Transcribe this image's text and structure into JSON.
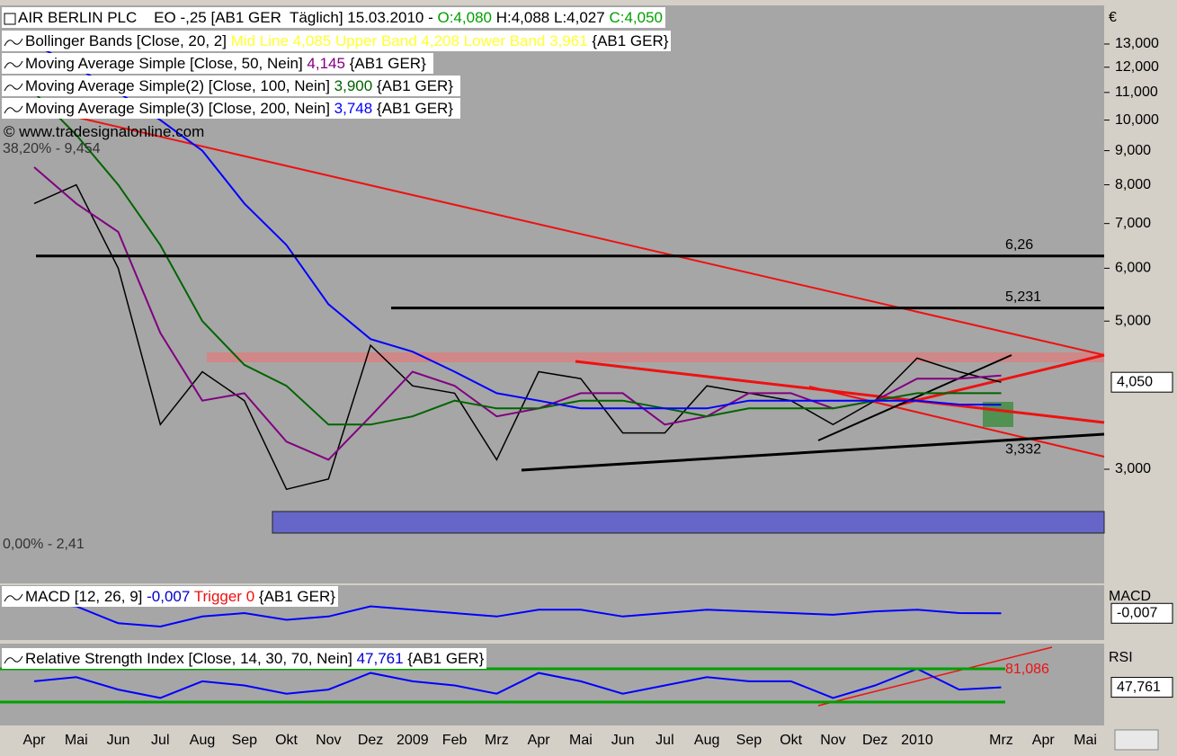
{
  "header": {
    "instrument": "AIR BERLIN PLC",
    "info": "EO -,25 [AB1 GER  Täglich] 15.03.2010 -",
    "open": "O:4,080",
    "high_low": "H:4,088 L:4,027",
    "close": "C:4,050",
    "watermark": "© www.tradesignalonline.com",
    "symbol": "{AB1 GER}"
  },
  "bollinger": {
    "label": "Bollinger Bands [Close, 20, 2]",
    "detail": "Mid Line 4,085 Upper Band 4,208 Lower Band 3,961"
  },
  "chart_data": [
    {
      "type": "line",
      "currency": "€",
      "log_scale": true,
      "categories": [
        "Apr",
        "Mai",
        "Jun",
        "Jul",
        "Aug",
        "Sep",
        "Okt",
        "Nov",
        "Dez",
        "2009",
        "Feb",
        "Mrz",
        "Apr",
        "Mai",
        "Jun",
        "Jul",
        "Aug",
        "Sep",
        "Okt",
        "Nov",
        "Dez",
        "2010",
        null,
        "Mrz",
        "Apr",
        "Mai"
      ],
      "ylim": [
        2.03,
        14.76
      ],
      "yticks": [
        {
          "value": 3,
          "label": "3,000"
        },
        {
          "value": 5,
          "label": "5,000"
        },
        {
          "value": 6,
          "label": "6,000"
        },
        {
          "value": 7,
          "label": "7,000"
        },
        {
          "value": 8,
          "label": "8,000"
        },
        {
          "value": 9,
          "label": "9,000"
        },
        {
          "value": 10,
          "label": "10,000"
        },
        {
          "value": 11,
          "label": "11,000"
        },
        {
          "value": 12,
          "label": "12,000"
        },
        {
          "value": 13,
          "label": "13,000"
        }
      ],
      "series": [
        {
          "color": "#000000",
          "values": [
            7.5,
            8.0,
            6.0,
            3.5,
            4.2,
            3.8,
            2.8,
            2.9,
            4.6,
            4.0,
            3.9,
            3.1,
            4.2,
            4.1,
            3.4,
            3.4,
            4.0,
            3.9,
            3.8,
            3.5,
            3.8,
            4.4,
            4.2,
            4.05,
            null,
            null
          ]
        },
        {
          "name": "Moving Average Simple [Close, 50, Nein]",
          "legend_value": "4,145",
          "color": "#800080",
          "values": [
            8.5,
            7.5,
            6.8,
            4.8,
            3.8,
            3.9,
            3.3,
            3.1,
            3.6,
            4.2,
            4.0,
            3.6,
            3.7,
            3.9,
            3.9,
            3.5,
            3.6,
            3.9,
            3.9,
            3.7,
            3.8,
            4.1,
            4.1,
            4.145,
            null,
            null
          ]
        },
        {
          "name": "Moving Average Simple(2) [Close, 100, Nein]",
          "legend_value": "3,900",
          "color": "#006400",
          "values": [
            11,
            9.5,
            8,
            6.5,
            5,
            4.3,
            4,
            3.5,
            3.5,
            3.6,
            3.8,
            3.7,
            3.7,
            3.8,
            3.8,
            3.7,
            3.6,
            3.7,
            3.7,
            3.7,
            3.8,
            3.9,
            3.9,
            3.9,
            null,
            null
          ]
        },
        {
          "name": "Moving Average Simple(3) [Close, 200, Nein]",
          "legend_value": "3,748",
          "color": "#0000ff",
          "values": [
            13,
            12,
            11,
            10,
            9,
            7.5,
            6.5,
            5.3,
            4.7,
            4.5,
            4.2,
            3.9,
            3.8,
            3.7,
            3.7,
            3.7,
            3.7,
            3.8,
            3.8,
            3.8,
            3.8,
            3.8,
            3.75,
            3.748,
            null,
            null
          ]
        }
      ],
      "levels": [
        {
          "value": 6.26,
          "label": "6,26",
          "line": true
        },
        {
          "value": 5.231,
          "label": "5,231",
          "line": true
        },
        {
          "value": 3.332,
          "label": "3,332",
          "line": false
        }
      ],
      "annotations": [
        "38,20% - 9,454",
        "0,00% - 2,41"
      ],
      "last_value": {
        "value": 4.05,
        "label": "4,050"
      }
    },
    {
      "type": "line",
      "title": "MACD [12, 26, 9]",
      "trigger": "Trigger 0",
      "axis_title": "MACD",
      "ylim": [
        -0.8,
        0.8
      ],
      "series": [
        {
          "color": "#0000ff",
          "values": [
            0.3,
            0.2,
            -0.3,
            -0.4,
            -0.1,
            0,
            -0.2,
            -0.1,
            0.2,
            0.1,
            0,
            -0.1,
            0.1,
            0.1,
            -0.1,
            0,
            0.1,
            0.05,
            0,
            -0.05,
            0.05,
            0.1,
            0,
            -0.007,
            null,
            null
          ]
        }
      ],
      "last_value": {
        "value": -0.007,
        "label": "-0,007"
      }
    },
    {
      "type": "line",
      "title": "Relative Strength Index [Close, 14, 30, 70, Nein]",
      "axis_title": "RSI",
      "ylim": [
        4,
        96
      ],
      "levels": [
        30,
        70
      ],
      "series": [
        {
          "color": "#0000ff",
          "values": [
            55,
            60,
            45,
            35,
            55,
            50,
            40,
            45,
            65,
            55,
            50,
            40,
            65,
            55,
            40,
            50,
            60,
            55,
            55,
            35,
            50,
            70,
            45,
            47.761,
            null,
            null
          ]
        }
      ],
      "annotation": {
        "value": 81.086,
        "label": "81,086"
      },
      "last_value": {
        "value": 47.761,
        "label": "47,761"
      }
    }
  ]
}
